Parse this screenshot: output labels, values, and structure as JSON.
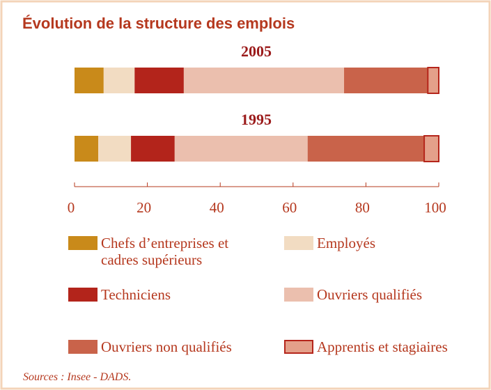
{
  "chart_data": {
    "type": "bar",
    "orientation": "horizontal",
    "stacked": true,
    "title": "Évolution de la structure des emplois",
    "categories": [
      "2005",
      "1995"
    ],
    "series": [
      {
        "name": "Chefs d’entreprises et cadres supérieurs",
        "color": "#c98a1a",
        "values": [
          8,
          6.5
        ]
      },
      {
        "name": "Employés",
        "color": "#f2dcc2",
        "values": [
          8.5,
          9
        ]
      },
      {
        "name": "Techniciens",
        "color": "#b3241b",
        "values": [
          13.5,
          12
        ]
      },
      {
        "name": "Ouvriers qualifiés",
        "color": "#ebbfae",
        "values": [
          44,
          36.5
        ]
      },
      {
        "name": "Ouvriers non qualifiés",
        "color": "#c9634a",
        "values": [
          23,
          32
        ]
      },
      {
        "name": "Apprentis et stagiaires",
        "color": "#e4a08a",
        "edgecolor": "#b5251b",
        "values": [
          3,
          4
        ]
      }
    ],
    "xlim": [
      0,
      100
    ],
    "xticks": [
      0,
      20,
      40,
      60,
      80,
      100
    ],
    "source": "Sources : Insee - DADS."
  }
}
